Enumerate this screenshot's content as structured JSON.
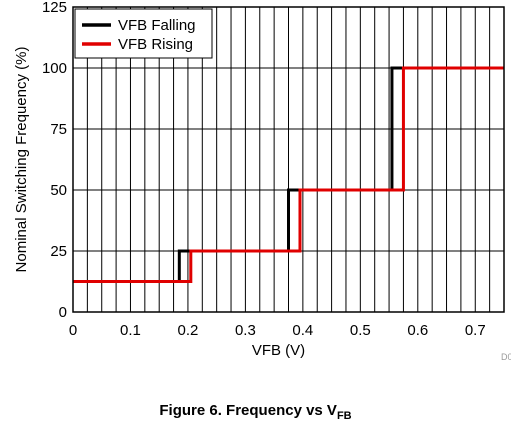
{
  "chart_data": {
    "type": "line",
    "xlabel": "VFB (V)",
    "ylabel": "Nominal Switching Frequency (%)",
    "xlim": [
      0,
      0.75
    ],
    "ylim": [
      0,
      125
    ],
    "x_ticks": [
      "0",
      "0.1",
      "0.2",
      "0.3",
      "0.4",
      "0.5",
      "0.6",
      "0.7"
    ],
    "y_ticks": [
      "0",
      "25",
      "50",
      "75",
      "100",
      "125"
    ],
    "grid": true,
    "legend_position": "top-left",
    "series": [
      {
        "name": "VFB Falling",
        "color": "#000000",
        "x": [
          0,
          0.185,
          0.185,
          0.375,
          0.375,
          0.555,
          0.555,
          0.75
        ],
        "y": [
          12.5,
          12.5,
          25,
          25,
          50,
          50,
          100,
          100
        ]
      },
      {
        "name": "VFB Rising",
        "color": "#e00000",
        "x": [
          0,
          0.205,
          0.205,
          0.395,
          0.395,
          0.575,
          0.575,
          0.75
        ],
        "y": [
          12.5,
          12.5,
          25,
          25,
          50,
          50,
          100,
          100
        ]
      }
    ],
    "corner_label": "D0",
    "caption": {
      "text": "Figure 6. Frequency vs V",
      "subscript": "FB"
    }
  }
}
